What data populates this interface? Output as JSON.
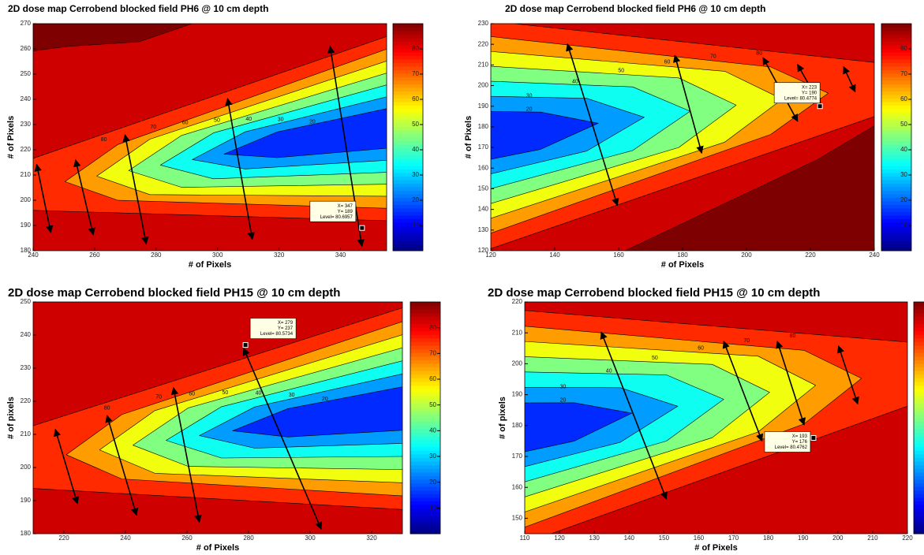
{
  "chart_data": [
    {
      "type": "contour",
      "title": "2D dose map Cerrobend blocked field PH6 @ 10 cm depth",
      "x_label": "# of Pixels",
      "y_label": "# of Pixels",
      "xlim": [
        240,
        355
      ],
      "xticks": [
        240,
        260,
        280,
        300,
        320,
        340
      ],
      "ylim": [
        180,
        270
      ],
      "yticks": [
        180,
        190,
        200,
        210,
        220,
        230,
        240,
        250,
        260,
        270
      ],
      "clim": [
        0,
        90
      ],
      "cticks": [
        10,
        20,
        30,
        40,
        50,
        60,
        70,
        80
      ],
      "contour_levels": [
        80,
        70,
        60,
        50,
        40,
        30,
        20
      ],
      "datatip": {
        "x": 347,
        "y": 189,
        "level": 80.6957,
        "labels": [
          "X= 347",
          "Y= 189",
          "Level= 80.6957"
        ]
      }
    },
    {
      "type": "contour",
      "title": "2D dose map Cerrobend blocked field PH6 @ 10 cm depth",
      "x_label": "# of Pixels",
      "y_label": "# of Pixels",
      "xlim": [
        120,
        240
      ],
      "xticks": [
        120,
        140,
        160,
        180,
        200,
        220,
        240
      ],
      "ylim": [
        120,
        230
      ],
      "yticks": [
        120,
        130,
        140,
        150,
        160,
        170,
        180,
        190,
        200,
        210,
        220,
        230
      ],
      "clim": [
        0,
        90
      ],
      "cticks": [
        10,
        20,
        30,
        40,
        50,
        60,
        70,
        80
      ],
      "contour_levels": [
        80,
        70,
        60,
        50,
        40,
        30,
        20
      ],
      "datatip": {
        "x": 223,
        "y": 190,
        "level": 80.4774,
        "labels": [
          "X= 223",
          "Y= 190",
          "Level= 80.4774"
        ]
      }
    },
    {
      "type": "contour",
      "title": "2D dose map Cerrobend blocked field PH15 @ 10 cm depth",
      "x_label": "# of Pixels",
      "y_label": "# of pixels",
      "xlim": [
        210,
        330
      ],
      "xticks": [
        220,
        240,
        260,
        280,
        300,
        320
      ],
      "ylim": [
        180,
        250
      ],
      "yticks": [
        180,
        190,
        200,
        210,
        220,
        230,
        240,
        250
      ],
      "clim": [
        0,
        90
      ],
      "cticks": [
        10,
        20,
        30,
        40,
        50,
        60,
        70,
        80
      ],
      "contour_levels": [
        80,
        70,
        60,
        50,
        40,
        30,
        20
      ],
      "datatip": {
        "x": 279,
        "y": 237,
        "level": 80.5734,
        "labels": [
          "X= 279",
          "Y= 237",
          "Level= 80.5734"
        ]
      }
    },
    {
      "type": "contour",
      "title": "2D dose map Cerrobend blocked field PH15 @ 10 cm depth",
      "x_label": "# of Pixels",
      "y_label": "# of pixels",
      "xlim": [
        110,
        220
      ],
      "xticks": [
        110,
        120,
        130,
        140,
        150,
        160,
        170,
        180,
        190,
        200,
        210,
        220
      ],
      "ylim": [
        145,
        220
      ],
      "yticks": [
        150,
        160,
        170,
        180,
        190,
        200,
        210,
        220
      ],
      "clim": [
        0,
        90
      ],
      "contour_levels": [
        80,
        70,
        60,
        50,
        40,
        30,
        20
      ],
      "datatip": {
        "x": 193,
        "y": 176,
        "level": 80.4762,
        "labels": [
          "X= 193",
          "Y= 176",
          "Level= 80.4762"
        ]
      }
    }
  ]
}
